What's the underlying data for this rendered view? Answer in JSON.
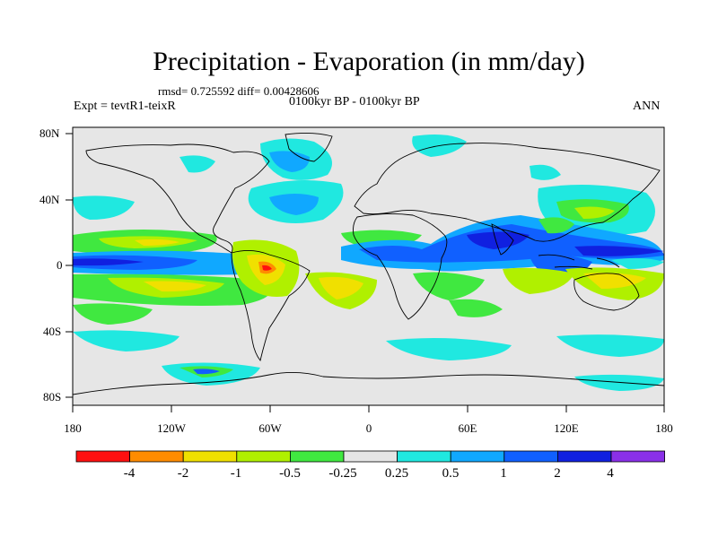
{
  "header": {
    "title": "Precipitation - Evaporation (in mm/day)",
    "stats": "rmsd= 0.725592 diff= 0.00428606",
    "period": "0100kyr BP - 0100kyr BP",
    "experiment": "Expt = tevtR1-teixR",
    "season": "ANN"
  },
  "axes": {
    "lat_labels": [
      "80N",
      "40N",
      "0",
      "40S",
      "80S"
    ],
    "lon_labels": [
      "180",
      "120W",
      "60W",
      "0",
      "60E",
      "120E",
      "180"
    ]
  },
  "colorbar": {
    "labels": [
      "-4",
      "-2",
      "-1",
      "-0.5",
      "-0.25",
      "0.25",
      "0.5",
      "1",
      "2",
      "4"
    ],
    "colors": [
      "#ff1010",
      "#ff8c00",
      "#f0e000",
      "#b0f000",
      "#40e840",
      "#e6e6e6",
      "#20e8e0",
      "#10a8ff",
      "#1060ff",
      "#1020e0",
      "#8a30e8"
    ]
  },
  "palette": {
    "background": "#e6e6e6",
    "land_outline": "#000000"
  }
}
